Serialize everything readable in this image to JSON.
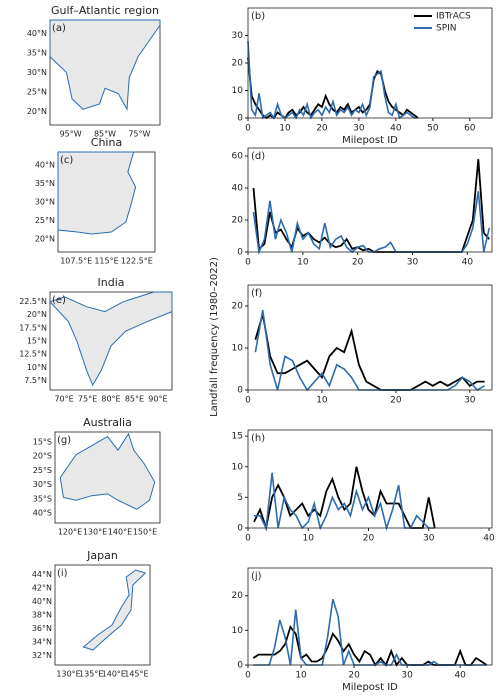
{
  "maps": [
    {
      "title": "Gulf–Atlantic region",
      "label": "(a)",
      "yticks": [
        "40°N",
        "35°N",
        "30°N",
        "25°N",
        "20°N"
      ],
      "xticks": [
        "95°W",
        "85°W",
        "75°W"
      ]
    },
    {
      "title": "China",
      "label": "(c)",
      "yticks": [
        "40°N",
        "35°N",
        "30°N",
        "25°N",
        "20°N"
      ],
      "xticks": [
        "107.5°E",
        "115°E",
        "122.5°E"
      ]
    },
    {
      "title": "India",
      "label": "(e)",
      "yticks": [
        "22.5°N",
        "20°N",
        "17.5°N",
        "15°N",
        "12.5°N",
        "10°N",
        "7.5°N"
      ],
      "xticks": [
        "70°E",
        "75°E",
        "80°E",
        "85°E",
        "90°E"
      ]
    },
    {
      "title": "Australia",
      "label": "(g)",
      "yticks": [
        "15°S",
        "20°S",
        "25°S",
        "30°S",
        "35°S",
        "40°S"
      ],
      "xticks": [
        "120°E",
        "130°E",
        "140°E",
        "150°E"
      ]
    },
    {
      "title": "Japan",
      "label": "(i)",
      "yticks": [
        "44°N",
        "42°N",
        "40°N",
        "38°N",
        "36°N",
        "34°N",
        "32°N"
      ],
      "xticks": [
        "130°E",
        "135°E",
        "140°E",
        "145°E"
      ]
    }
  ],
  "chart_data": [
    {
      "type": "line",
      "label": "(b)",
      "xlabel": "Milepost ID",
      "legend": "upper right",
      "xlim": [
        0,
        66
      ],
      "ylim": [
        0,
        40
      ],
      "xticks": [
        0,
        10,
        20,
        30,
        40,
        50,
        60
      ],
      "yticks": [
        0,
        10,
        20,
        30
      ],
      "x": [
        0,
        1,
        2,
        3,
        4,
        5,
        6,
        7,
        8,
        9,
        10,
        11,
        12,
        13,
        14,
        15,
        16,
        17,
        18,
        19,
        20,
        21,
        22,
        23,
        24,
        25,
        26,
        27,
        28,
        29,
        30,
        31,
        32,
        33,
        34,
        35,
        36,
        37,
        38,
        39,
        40,
        41,
        42,
        43,
        44,
        45,
        46
      ],
      "series": [
        {
          "name": "IBTrACS",
          "color": "#000000",
          "values": [
            22,
            8,
            5,
            3,
            1,
            0,
            1,
            0,
            2,
            1,
            0,
            2,
            3,
            1,
            2,
            4,
            2,
            1,
            3,
            5,
            4,
            8,
            5,
            3,
            2,
            4,
            3,
            5,
            2,
            3,
            4,
            2,
            3,
            5,
            14,
            17,
            16,
            10,
            6,
            4,
            3,
            2,
            1,
            3,
            2,
            1,
            0
          ]
        },
        {
          "name": "SPIN",
          "color": "#2b6cb0",
          "values": [
            28,
            3,
            1,
            9,
            0,
            1,
            2,
            0,
            5,
            1,
            0,
            1,
            2,
            0,
            3,
            1,
            5,
            0,
            2,
            3,
            1,
            4,
            2,
            6,
            1,
            3,
            2,
            4,
            1,
            3,
            2,
            5,
            1,
            4,
            15,
            16,
            17,
            8,
            2,
            1,
            5,
            0,
            1,
            2,
            1,
            0,
            0
          ]
        }
      ]
    },
    {
      "type": "line",
      "label": "(d)",
      "xlim": [
        0,
        44.5
      ],
      "ylim": [
        0,
        65
      ],
      "xticks": [
        0,
        10,
        20,
        30,
        40
      ],
      "yticks": [
        0,
        20,
        40,
        60
      ],
      "x": [
        1,
        2,
        3,
        4,
        5,
        6,
        7,
        8,
        9,
        10,
        11,
        12,
        13,
        14,
        15,
        16,
        17,
        18,
        19,
        20,
        21,
        22,
        23,
        24,
        25,
        26,
        27,
        28,
        29,
        30,
        31,
        32,
        33,
        34,
        35,
        36,
        37,
        38,
        39,
        40,
        41,
        42,
        43,
        44
      ],
      "series": [
        {
          "name": "IBTrACS",
          "color": "#000000",
          "values": [
            40,
            2,
            5,
            25,
            12,
            14,
            8,
            3,
            15,
            10,
            12,
            8,
            6,
            9,
            5,
            3,
            4,
            8,
            2,
            3,
            1,
            2,
            0,
            0,
            0,
            0,
            0,
            0,
            0,
            0,
            0,
            0,
            0,
            0,
            0,
            0,
            0,
            0,
            0,
            10,
            20,
            58,
            12,
            8
          ]
        },
        {
          "name": "SPIN",
          "color": "#2b6cb0",
          "values": [
            25,
            0,
            8,
            32,
            8,
            20,
            12,
            0,
            18,
            8,
            12,
            5,
            2,
            18,
            3,
            8,
            10,
            3,
            0,
            3,
            4,
            0,
            0,
            2,
            3,
            6,
            0,
            0,
            0,
            0,
            0,
            0,
            0,
            0,
            0,
            0,
            0,
            0,
            0,
            5,
            15,
            38,
            0,
            15
          ]
        }
      ]
    },
    {
      "type": "line",
      "label": "(f)",
      "ylabel": "Landfall frequency (1980–2022)",
      "xlim": [
        0,
        33
      ],
      "ylim": [
        0,
        25
      ],
      "xticks": [
        0,
        10,
        20,
        30
      ],
      "yticks": [
        0,
        10,
        20
      ],
      "x": [
        1,
        2,
        3,
        4,
        5,
        6,
        7,
        8,
        9,
        10,
        11,
        12,
        13,
        14,
        15,
        16,
        17,
        18,
        19,
        20,
        21,
        22,
        23,
        24,
        25,
        26,
        27,
        28,
        29,
        30,
        31,
        32
      ],
      "series": [
        {
          "name": "IBTrACS",
          "color": "#000000",
          "values": [
            12,
            18,
            8,
            4,
            4,
            5,
            6,
            7,
            5,
            3,
            8,
            10,
            9,
            14,
            6,
            2,
            1,
            0,
            0,
            0,
            0,
            0,
            1,
            2,
            1,
            2,
            1,
            2,
            3,
            1,
            2,
            2
          ]
        },
        {
          "name": "SPIN",
          "color": "#2b6cb0",
          "values": [
            9,
            19,
            6,
            0,
            8,
            7,
            3,
            0,
            2,
            4,
            1,
            6,
            5,
            3,
            0,
            0,
            0,
            0,
            0,
            0,
            0,
            0,
            0,
            0,
            0,
            0,
            0,
            1,
            3,
            2,
            0,
            1
          ]
        }
      ]
    },
    {
      "type": "line",
      "label": "(h)",
      "xlim": [
        0,
        40.5
      ],
      "ylim": [
        0,
        16
      ],
      "xticks": [
        0,
        10,
        20,
        30,
        40
      ],
      "yticks": [
        0,
        5,
        10,
        15
      ],
      "x": [
        1,
        2,
        3,
        4,
        5,
        6,
        7,
        8,
        9,
        10,
        11,
        12,
        13,
        14,
        15,
        16,
        17,
        18,
        19,
        20,
        21,
        22,
        23,
        24,
        25,
        26,
        27,
        28,
        29,
        30,
        31
      ],
      "series": [
        {
          "name": "IBTrACS",
          "color": "#000000",
          "values": [
            1,
            3,
            0,
            5,
            7,
            5,
            2,
            3,
            4,
            2,
            3,
            2,
            6,
            8,
            5,
            3,
            4,
            10,
            6,
            3,
            2,
            6,
            4,
            4,
            4,
            2,
            0,
            0,
            0,
            5,
            0
          ]
        },
        {
          "name": "SPIN",
          "color": "#2b6cb0",
          "values": [
            2,
            2,
            0,
            9,
            0,
            5,
            3,
            2,
            0,
            1,
            4,
            0,
            2,
            5,
            3,
            4,
            2,
            6,
            3,
            5,
            2,
            4,
            0,
            3,
            7,
            0,
            0,
            2,
            1,
            0,
            0
          ]
        }
      ]
    },
    {
      "type": "line",
      "label": "(j)",
      "xlabel": "Milepost ID",
      "xlim": [
        0,
        46
      ],
      "ylim": [
        0,
        28
      ],
      "xticks": [
        0,
        10,
        20,
        30,
        40
      ],
      "yticks": [
        0,
        10,
        20
      ],
      "x": [
        1,
        2,
        3,
        4,
        5,
        6,
        7,
        8,
        9,
        10,
        11,
        12,
        13,
        14,
        15,
        16,
        17,
        18,
        19,
        20,
        21,
        22,
        23,
        24,
        25,
        26,
        27,
        28,
        29,
        30,
        31,
        32,
        33,
        34,
        35,
        36,
        37,
        38,
        39,
        40,
        41,
        42,
        43,
        44,
        45
      ],
      "series": [
        {
          "name": "IBTrACS",
          "color": "#000000",
          "values": [
            2,
            3,
            3,
            3,
            3,
            4,
            6,
            11,
            9,
            2,
            3,
            1,
            1,
            2,
            5,
            9,
            7,
            4,
            6,
            3,
            1,
            4,
            3,
            0,
            2,
            0,
            4,
            0,
            2,
            0,
            0,
            0,
            0,
            1,
            0,
            0,
            0,
            0,
            0,
            4,
            0,
            0,
            2,
            1,
            0
          ]
        },
        {
          "name": "SPIN",
          "color": "#2b6cb0",
          "values": [
            0,
            0,
            0,
            0,
            5,
            13,
            8,
            0,
            16,
            2,
            0,
            0,
            0,
            0,
            8,
            19,
            14,
            0,
            4,
            0,
            0,
            0,
            0,
            0,
            1,
            0,
            0,
            3,
            0,
            0,
            0,
            0,
            0,
            0,
            1,
            0,
            0,
            0,
            0,
            0,
            0,
            0,
            0,
            0,
            0
          ]
        }
      ]
    }
  ]
}
